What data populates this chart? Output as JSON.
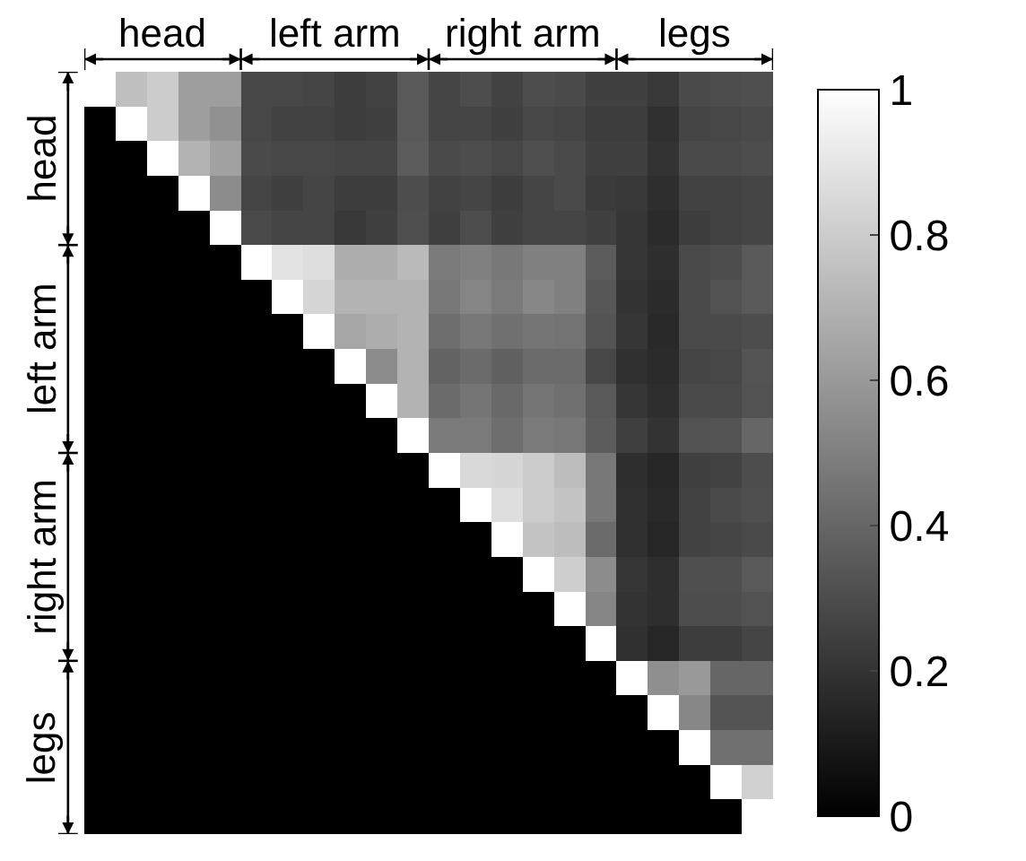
{
  "chart_data": {
    "type": "heatmap",
    "categories": [
      null,
      null,
      null,
      null,
      null,
      null,
      null,
      null,
      null,
      null,
      null,
      null,
      null,
      null,
      null,
      null,
      null,
      null,
      null,
      null,
      null,
      null
    ],
    "y_categories": [
      null,
      null,
      null,
      null,
      null,
      null,
      null,
      null,
      null,
      null,
      null,
      null,
      null,
      null,
      null,
      null,
      null,
      null,
      null,
      null,
      null,
      null
    ],
    "annotations": [
      "head",
      "left arm",
      "right arm",
      "legs",
      "head",
      "left arm",
      "right arm",
      "legs"
    ],
    "cells": [
      [
        1,
        0.75,
        0.8,
        0.62,
        0.62,
        0.28,
        0.28,
        0.27,
        0.24,
        0.26,
        0.35,
        0.27,
        0.3,
        0.26,
        0.3,
        0.29,
        0.25,
        0.25,
        0.22,
        0.29,
        0.3,
        0.31
      ],
      [
        0,
        1,
        0.8,
        0.62,
        0.57,
        0.28,
        0.26,
        0.26,
        0.24,
        0.25,
        0.35,
        0.27,
        0.27,
        0.25,
        0.28,
        0.27,
        0.24,
        0.24,
        0.19,
        0.27,
        0.28,
        0.29
      ],
      [
        0,
        0,
        1,
        0.7,
        0.63,
        0.29,
        0.28,
        0.28,
        0.27,
        0.27,
        0.36,
        0.29,
        0.3,
        0.28,
        0.31,
        0.29,
        0.25,
        0.25,
        0.2,
        0.29,
        0.29,
        0.3
      ],
      [
        0,
        0,
        0,
        1,
        0.55,
        0.27,
        0.25,
        0.27,
        0.24,
        0.24,
        0.3,
        0.26,
        0.27,
        0.24,
        0.27,
        0.29,
        0.23,
        0.22,
        0.18,
        0.26,
        0.26,
        0.27
      ],
      [
        0,
        0,
        0,
        0,
        1,
        0.29,
        0.27,
        0.27,
        0.22,
        0.25,
        0.31,
        0.25,
        0.3,
        0.25,
        0.27,
        0.27,
        0.25,
        0.21,
        0.17,
        0.24,
        0.26,
        0.27
      ],
      [
        0,
        0,
        0,
        0,
        0,
        1,
        0.89,
        0.87,
        0.68,
        0.68,
        0.73,
        0.48,
        0.5,
        0.47,
        0.5,
        0.5,
        0.36,
        0.21,
        0.18,
        0.29,
        0.3,
        0.35
      ],
      [
        0,
        0,
        0,
        0,
        0,
        0,
        1,
        0.84,
        0.7,
        0.7,
        0.7,
        0.47,
        0.52,
        0.48,
        0.53,
        0.5,
        0.34,
        0.2,
        0.17,
        0.29,
        0.32,
        0.35
      ],
      [
        0,
        0,
        0,
        0,
        0,
        0,
        0,
        1,
        0.65,
        0.68,
        0.7,
        0.43,
        0.47,
        0.44,
        0.46,
        0.45,
        0.33,
        0.21,
        0.16,
        0.29,
        0.29,
        0.3
      ],
      [
        0,
        0,
        0,
        0,
        0,
        0,
        0,
        0,
        1,
        0.55,
        0.7,
        0.39,
        0.42,
        0.38,
        0.42,
        0.42,
        0.28,
        0.19,
        0.17,
        0.27,
        0.28,
        0.33
      ],
      [
        0,
        0,
        0,
        0,
        0,
        0,
        0,
        0,
        0,
        1,
        0.7,
        0.42,
        0.46,
        0.41,
        0.46,
        0.44,
        0.35,
        0.21,
        0.18,
        0.29,
        0.29,
        0.32
      ],
      [
        0,
        0,
        0,
        0,
        0,
        0,
        0,
        0,
        0,
        0,
        1,
        0.48,
        0.48,
        0.43,
        0.48,
        0.47,
        0.36,
        0.25,
        0.2,
        0.32,
        0.33,
        0.4
      ],
      [
        0,
        0,
        0,
        0,
        0,
        0,
        0,
        0,
        0,
        0,
        0,
        1,
        0.85,
        0.84,
        0.8,
        0.74,
        0.47,
        0.18,
        0.15,
        0.25,
        0.26,
        0.3
      ],
      [
        0,
        0,
        0,
        0,
        0,
        0,
        0,
        0,
        0,
        0,
        0,
        0,
        1,
        0.87,
        0.8,
        0.77,
        0.47,
        0.19,
        0.16,
        0.26,
        0.29,
        0.31
      ],
      [
        0,
        0,
        0,
        0,
        0,
        0,
        0,
        0,
        0,
        0,
        0,
        0,
        0,
        1,
        0.77,
        0.74,
        0.42,
        0.19,
        0.15,
        0.26,
        0.27,
        0.29
      ],
      [
        0,
        0,
        0,
        0,
        0,
        0,
        0,
        0,
        0,
        0,
        0,
        0,
        0,
        0,
        1,
        0.81,
        0.55,
        0.21,
        0.18,
        0.31,
        0.31,
        0.35
      ],
      [
        0,
        0,
        0,
        0,
        0,
        0,
        0,
        0,
        0,
        0,
        0,
        0,
        0,
        0,
        0,
        1,
        0.52,
        0.2,
        0.18,
        0.3,
        0.3,
        0.32
      ],
      [
        0,
        0,
        0,
        0,
        0,
        0,
        0,
        0,
        0,
        0,
        0,
        0,
        0,
        0,
        0,
        0,
        1,
        0.19,
        0.15,
        0.24,
        0.24,
        0.27
      ],
      [
        0,
        0,
        0,
        0,
        0,
        0,
        0,
        0,
        0,
        0,
        0,
        0,
        0,
        0,
        0,
        0,
        0,
        1,
        0.56,
        0.6,
        0.4,
        0.4
      ],
      [
        0,
        0,
        0,
        0,
        0,
        0,
        0,
        0,
        0,
        0,
        0,
        0,
        0,
        0,
        0,
        0,
        0,
        0,
        1,
        0.53,
        0.33,
        0.33
      ],
      [
        0,
        0,
        0,
        0,
        0,
        0,
        0,
        0,
        0,
        0,
        0,
        0,
        0,
        0,
        0,
        0,
        0,
        0,
        0,
        1,
        0.44,
        0.44
      ],
      [
        0,
        0,
        0,
        0,
        0,
        0,
        0,
        0,
        0,
        0,
        0,
        0,
        0,
        0,
        0,
        0,
        0,
        0,
        0,
        0,
        1,
        0.82
      ],
      [
        0,
        0,
        0,
        0,
        0,
        0,
        0,
        0,
        0,
        0,
        0,
        0,
        0,
        0,
        0,
        0,
        0,
        0,
        0,
        0,
        0,
        1
      ]
    ],
    "clim": [
      0,
      1
    ],
    "cticks": [
      0,
      0.2,
      0.4,
      0.6,
      0.8,
      1
    ]
  }
}
